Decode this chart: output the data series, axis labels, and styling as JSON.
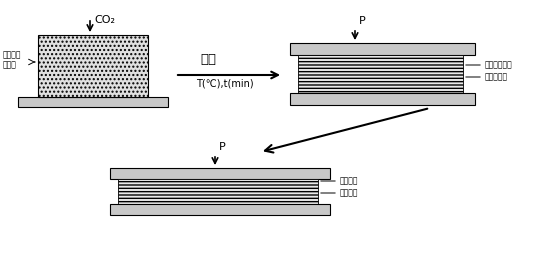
{
  "bg_color": "#ffffff",
  "line_color": "#000000",
  "text_co2": "CO₂",
  "text_arrow_label": "发泡",
  "text_temp": "T(℃),t(min)",
  "text_label1_line1": "天然的纳",
  "text_label1_line2": "米粒子",
  "text_label_nanodir": "纳米粒子取向",
  "text_label_pore": "拉长的泡孔",
  "text_label_nanodir2": "纳米粒子",
  "text_label_dir2": "定向取向",
  "text_P": "P",
  "text_P2": "P"
}
